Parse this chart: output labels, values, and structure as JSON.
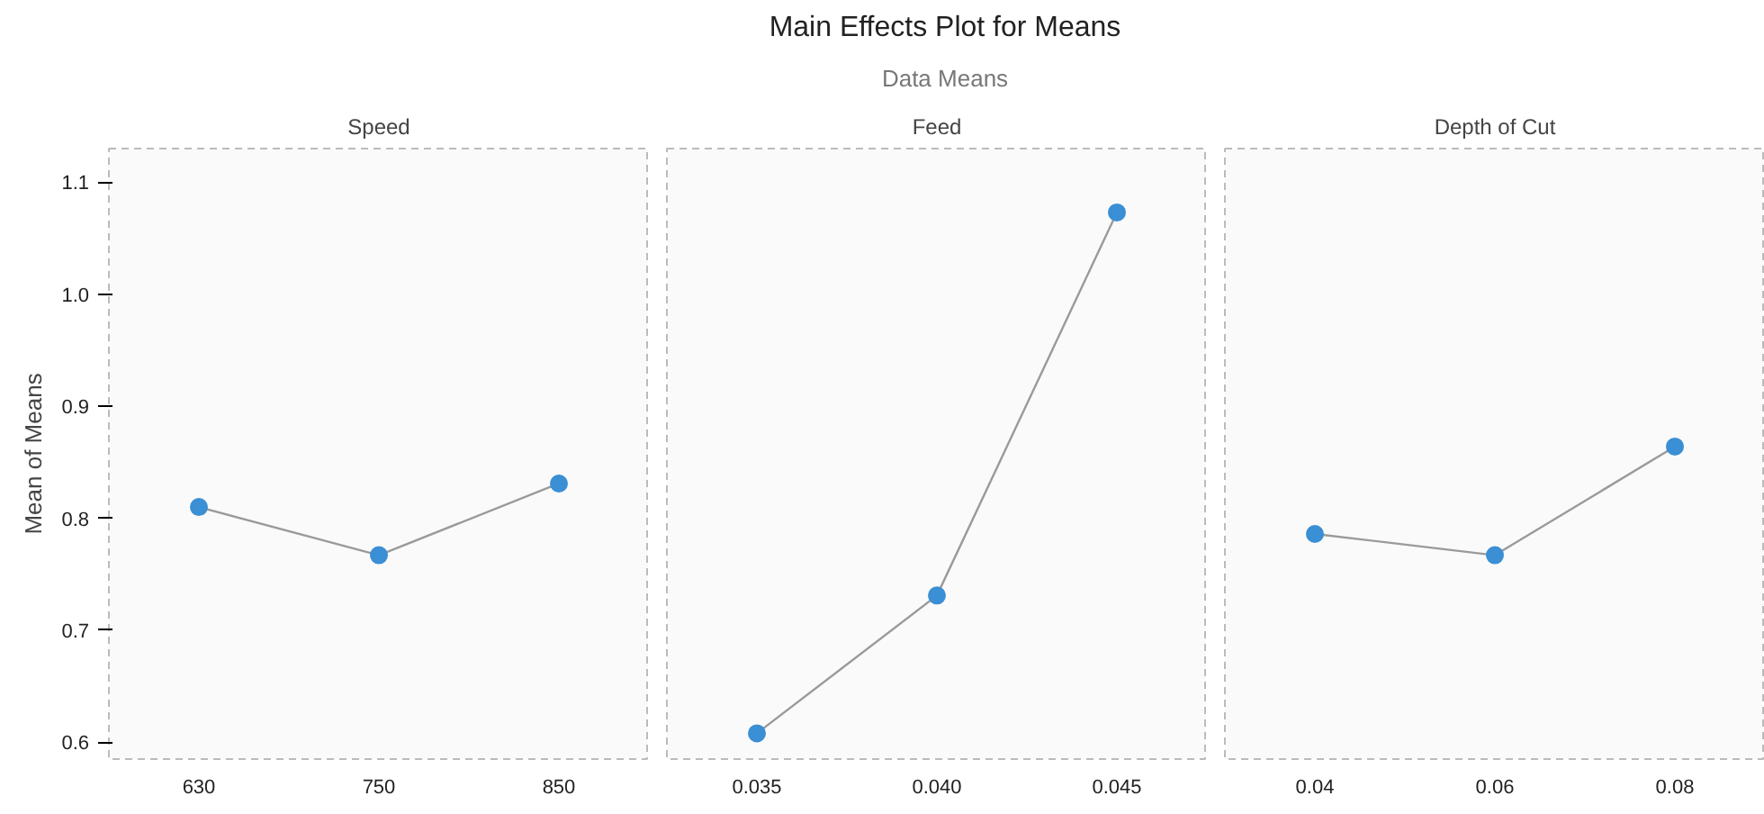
{
  "chart_data": [
    {
      "type": "line",
      "annotations": [
        "Speed"
      ],
      "categories": [
        "630",
        "750",
        "850"
      ],
      "ylabel": "Mean of Means",
      "ylim": [
        0.585,
        1.13
      ],
      "yticks": [
        {
          "value": 0.6,
          "label": "0.6"
        },
        {
          "value": 0.7,
          "label": "0.7"
        },
        {
          "value": 0.8,
          "label": "0.8"
        },
        {
          "value": 0.9,
          "label": "0.9"
        },
        {
          "value": 1.0,
          "label": "1.0"
        },
        {
          "value": 1.1,
          "label": "1.1"
        }
      ],
      "marker": "circle",
      "series": [
        {
          "color": "#3b8fd4",
          "values": [
            0.81,
            0.767,
            0.831
          ]
        }
      ]
    },
    {
      "type": "line",
      "title": "Main Effects Plot for Means",
      "subtitle": "Data Means",
      "annotations": [
        "Feed"
      ],
      "categories": [
        "0.035",
        "0.040",
        "0.045"
      ],
      "ylim": [
        0.585,
        1.13
      ],
      "tick_labels": "x",
      "marker": "circle",
      "series": [
        {
          "color": "#3b8fd4",
          "values": [
            0.608,
            0.731,
            1.073
          ]
        }
      ]
    },
    {
      "type": "line",
      "annotations": [
        "Depth of Cut"
      ],
      "categories": [
        "0.04",
        "0.06",
        "0.08"
      ],
      "ylim": [
        0.585,
        1.13
      ],
      "tick_labels": "x",
      "marker": "circle",
      "series": [
        {
          "color": "#3b8fd4",
          "values": [
            0.786,
            0.767,
            0.864
          ]
        }
      ]
    }
  ]
}
